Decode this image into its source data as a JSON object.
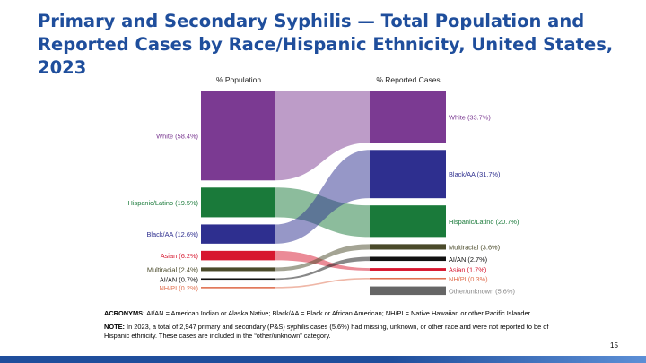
{
  "title": "Primary and Secondary Syphilis — Total Population and Reported Cases by Race/Hispanic Ethnicity, United States, 2023",
  "chart_data": {
    "type": "sankey",
    "left_header": "% Population",
    "right_header": "% Reported Cases",
    "left": [
      {
        "key": "white",
        "label": "White (58.4%)",
        "value": 58.4,
        "color": "#7b3a92"
      },
      {
        "key": "hispanic",
        "label": "Hispanic/Latino (19.5%)",
        "value": 19.5,
        "color": "#1a7a3a"
      },
      {
        "key": "black",
        "label": "Black/AA (12.6%)",
        "value": 12.6,
        "color": "#2e2f8f"
      },
      {
        "key": "asian",
        "label": "Asian (6.2%)",
        "value": 6.2,
        "color": "#d7172f"
      },
      {
        "key": "multiracial",
        "label": "Multiracial (2.4%)",
        "value": 2.4,
        "color": "#4a4a2a"
      },
      {
        "key": "aian",
        "label": "AI/AN (0.7%)",
        "value": 0.7,
        "color": "#111111"
      },
      {
        "key": "nhpi",
        "label": "NH/PI (0.2%)",
        "value": 0.2,
        "color": "#e07050"
      }
    ],
    "right": [
      {
        "key": "white",
        "label": "White (33.7%)",
        "value": 33.7,
        "color": "#7b3a92"
      },
      {
        "key": "black",
        "label": "Black/AA (31.7%)",
        "value": 31.7,
        "color": "#2e2f8f"
      },
      {
        "key": "hispanic",
        "label": "Hispanic/Latino (20.7%)",
        "value": 20.7,
        "color": "#1a7a3a"
      },
      {
        "key": "multiracial",
        "label": "Multiracial (3.6%)",
        "value": 3.6,
        "color": "#4a4a2a"
      },
      {
        "key": "aian",
        "label": "AI/AN (2.7%)",
        "value": 2.7,
        "color": "#111111"
      },
      {
        "key": "asian",
        "label": "Asian (1.7%)",
        "value": 1.7,
        "color": "#d7172f"
      },
      {
        "key": "nhpi",
        "label": "NH/PI (0.3%)",
        "value": 0.3,
        "color": "#e07050"
      },
      {
        "key": "other",
        "label": "Other/unknown (5.6%)",
        "value": 5.6,
        "color": "#666666"
      }
    ]
  },
  "notes": {
    "acronyms_label": "ACRONYMS:",
    "acronyms_text": " AI/AN = American Indian or Alaska Native; Black/AA = Black or African American; NH/PI = Native Hawaiian or other Pacific Islander",
    "note_label": "NOTE:",
    "note_text": " In 2023, a total of 2,947 primary and secondary (P&S) syphilis cases (5.6%) had missing, unknown, or other race and were not reported to be of Hispanic ethnicity. These cases are included in the “other/unknown” category."
  },
  "page_number": "15"
}
